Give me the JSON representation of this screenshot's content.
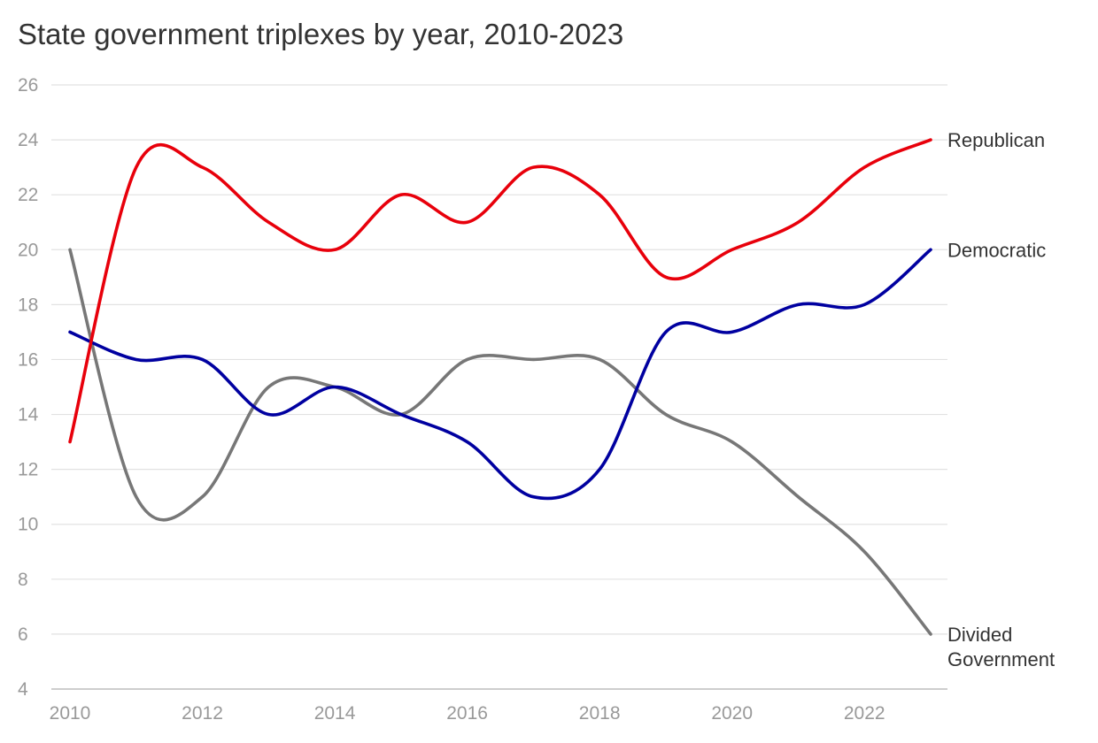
{
  "chart_data": {
    "type": "line",
    "title": "State government triplexes by year, 2010-2023",
    "xlabel": "",
    "ylabel": "",
    "x": [
      2010,
      2011,
      2012,
      2013,
      2014,
      2015,
      2016,
      2017,
      2018,
      2019,
      2020,
      2021,
      2022,
      2023
    ],
    "xticks": [
      "2010",
      "2012",
      "2014",
      "2016",
      "2018",
      "2020",
      "2022"
    ],
    "yticks": [
      "4",
      "6",
      "8",
      "10",
      "12",
      "14",
      "16",
      "18",
      "20",
      "22",
      "24",
      "26"
    ],
    "ylim": [
      4,
      26
    ],
    "xlim": [
      2010,
      2023
    ],
    "grid": true,
    "legend": "direct labels at line ends",
    "series": [
      {
        "name": "Republican",
        "label_lines": [
          "Republican"
        ],
        "color": "#e8000b",
        "values": [
          13,
          23,
          23,
          21,
          20,
          22,
          21,
          23,
          22,
          19,
          20,
          21,
          23,
          24
        ]
      },
      {
        "name": "Democratic",
        "label_lines": [
          "Democratic"
        ],
        "color": "#0000a0",
        "values": [
          17,
          16,
          16,
          14,
          15,
          14,
          13,
          11,
          12,
          17,
          17,
          18,
          18,
          20
        ]
      },
      {
        "name": "Divided Government",
        "label_lines": [
          "Divided",
          "Government"
        ],
        "color": "#777777",
        "values": [
          20,
          11,
          11,
          15,
          15,
          14,
          16,
          16,
          16,
          14,
          13,
          11,
          9,
          6
        ]
      }
    ]
  }
}
